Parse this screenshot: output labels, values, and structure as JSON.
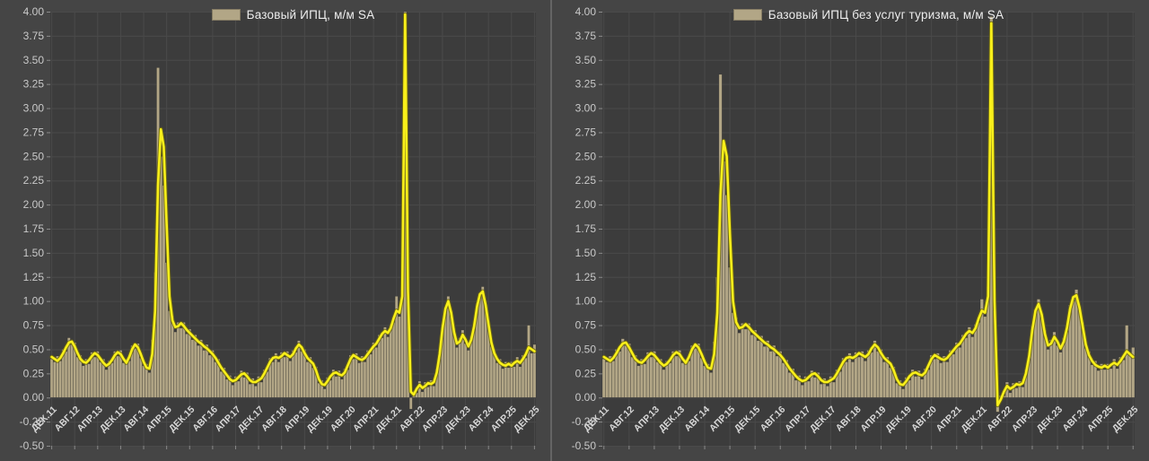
{
  "colors": {
    "page_bg": "#454545",
    "plot_bg": "#3c3c3c",
    "grid": "#4a4a4a",
    "tick": "#8a8a8a",
    "bar": "#b2a686",
    "bar_edge": "#232323",
    "line": "#f8ef1a",
    "line_shadow": "#6f680f",
    "axis_text": "#c9c9c9",
    "x_axis_text": "#d8d8d8",
    "legend_text": "#ededed",
    "divider": "#7d7d7d"
  },
  "chart_data": [
    {
      "type": "bar",
      "title": "Базовый ИПЦ, м/м SA",
      "subtitle": "",
      "xlabel": "",
      "ylabel": "",
      "x_period": "monthly, Dec 2011 – Dec 2025",
      "legend_position": "top-center",
      "grid": true,
      "ylim": [
        -0.5,
        4.0
      ],
      "y_tick_labels": [
        "4.00",
        "3.75",
        "3.50",
        "3.25",
        "3.00",
        "2.75",
        "2.50",
        "2.25",
        "2.00",
        "1.75",
        "1.50",
        "1.25",
        "1.00",
        "0.75",
        "0.50",
        "0.25",
        "0.00",
        "-0.25",
        "-0.50"
      ],
      "x_tick_labels": [
        "ДЕК.11",
        "АВГ.12",
        "АПР.13",
        "ДЕК.13",
        "АВГ.14",
        "АПР.15",
        "ДЕК.15",
        "АВГ.16",
        "АПР.17",
        "ДЕК.17",
        "АВГ.18",
        "АПР.19",
        "ДЕК.19",
        "АВГ.20",
        "АПР.21",
        "ДЕК.21",
        "АВГ.22",
        "АПР.23",
        "ДЕК.23",
        "АВГ.24",
        "АПР.25",
        "ДЕК.25"
      ],
      "x_tick_step_months": 8,
      "series": [
        {
          "name": "Базовый ИПЦ, м/м SA",
          "role": "bars",
          "color": "#b2a686",
          "values": [
            0.4,
            0.37,
            0.43,
            0.38,
            0.5,
            0.48,
            0.62,
            0.55,
            0.57,
            0.42,
            0.44,
            0.33,
            0.4,
            0.35,
            0.47,
            0.42,
            0.48,
            0.37,
            0.4,
            0.29,
            0.38,
            0.36,
            0.48,
            0.43,
            0.49,
            0.36,
            0.4,
            0.38,
            0.54,
            0.51,
            0.56,
            0.41,
            0.33,
            0.35,
            0.26,
            0.6,
            1.3,
            3.42,
            2.5,
            2.2,
            1.4,
            0.9,
            0.85,
            0.68,
            0.78,
            0.72,
            0.78,
            0.66,
            0.71,
            0.6,
            0.65,
            0.54,
            0.6,
            0.49,
            0.55,
            0.44,
            0.49,
            0.37,
            0.4,
            0.27,
            0.31,
            0.19,
            0.23,
            0.13,
            0.22,
            0.17,
            0.28,
            0.21,
            0.26,
            0.14,
            0.2,
            0.12,
            0.22,
            0.16,
            0.29,
            0.27,
            0.41,
            0.37,
            0.46,
            0.37,
            0.47,
            0.42,
            0.48,
            0.38,
            0.49,
            0.47,
            0.59,
            0.48,
            0.5,
            0.37,
            0.42,
            0.31,
            0.32,
            0.15,
            0.18,
            0.09,
            0.21,
            0.18,
            0.29,
            0.22,
            0.28,
            0.19,
            0.3,
            0.29,
            0.44,
            0.4,
            0.46,
            0.36,
            0.43,
            0.37,
            0.49,
            0.45,
            0.57,
            0.52,
            0.65,
            0.62,
            0.73,
            0.63,
            0.76,
            0.78,
            1.05,
            0.84,
            1.15,
            4.0,
            1.0,
            -0.12,
            0.07,
            0.05,
            0.17,
            0.06,
            0.16,
            0.11,
            0.18,
            0.12,
            0.3,
            0.41,
            0.76,
            0.88,
            1.05,
            0.84,
            0.72,
            0.52,
            0.62,
            0.7,
            0.56,
            0.49,
            0.64,
            0.7,
            0.98,
            1.03,
            1.15,
            0.92,
            0.8,
            0.53,
            0.5,
            0.36,
            0.4,
            0.3,
            0.37,
            0.31,
            0.37,
            0.32,
            0.42,
            0.32,
            0.44,
            0.41,
            0.75,
            0.46,
            0.55
          ]
        },
        {
          "name": "",
          "role": "line",
          "color": "#f8ef1a",
          "values": [
            0.42,
            0.4,
            0.38,
            0.41,
            0.46,
            0.52,
            0.57,
            0.58,
            0.53,
            0.46,
            0.4,
            0.37,
            0.36,
            0.39,
            0.43,
            0.46,
            0.44,
            0.4,
            0.36,
            0.33,
            0.35,
            0.39,
            0.44,
            0.47,
            0.45,
            0.4,
            0.36,
            0.42,
            0.5,
            0.55,
            0.52,
            0.45,
            0.37,
            0.31,
            0.3,
            0.45,
            0.9,
            2.2,
            2.78,
            2.6,
            1.8,
            1.05,
            0.8,
            0.73,
            0.74,
            0.77,
            0.74,
            0.7,
            0.67,
            0.64,
            0.61,
            0.58,
            0.56,
            0.53,
            0.51,
            0.48,
            0.45,
            0.41,
            0.36,
            0.31,
            0.27,
            0.23,
            0.19,
            0.17,
            0.18,
            0.21,
            0.24,
            0.25,
            0.22,
            0.18,
            0.16,
            0.16,
            0.18,
            0.2,
            0.25,
            0.31,
            0.37,
            0.41,
            0.42,
            0.41,
            0.43,
            0.46,
            0.44,
            0.42,
            0.45,
            0.51,
            0.55,
            0.52,
            0.46,
            0.41,
            0.38,
            0.35,
            0.28,
            0.19,
            0.14,
            0.13,
            0.17,
            0.22,
            0.25,
            0.26,
            0.24,
            0.23,
            0.26,
            0.33,
            0.4,
            0.44,
            0.42,
            0.4,
            0.39,
            0.41,
            0.45,
            0.49,
            0.53,
            0.56,
            0.61,
            0.66,
            0.69,
            0.67,
            0.72,
            0.82,
            0.9,
            0.88,
            1.05,
            3.97,
            1.1,
            0.06,
            0.03,
            0.09,
            0.13,
            0.1,
            0.12,
            0.15,
            0.14,
            0.16,
            0.26,
            0.45,
            0.72,
            0.92,
            1.0,
            0.88,
            0.68,
            0.56,
            0.58,
            0.65,
            0.6,
            0.53,
            0.6,
            0.74,
            0.94,
            1.07,
            1.1,
            0.96,
            0.76,
            0.57,
            0.46,
            0.4,
            0.36,
            0.34,
            0.33,
            0.35,
            0.33,
            0.36,
            0.38,
            0.36,
            0.4,
            0.45,
            0.52,
            0.5,
            0.48
          ]
        }
      ]
    },
    {
      "type": "bar",
      "title": "Базовый ИПЦ без услуг туризма, м/м SA",
      "subtitle": "",
      "xlabel": "",
      "ylabel": "",
      "x_period": "monthly, Dec 2011 – Dec 2025",
      "legend_position": "top-center",
      "grid": true,
      "ylim": [
        -0.5,
        4.0
      ],
      "y_tick_labels": [
        "4.00",
        "3.75",
        "3.50",
        "3.25",
        "3.00",
        "2.75",
        "2.50",
        "2.25",
        "2.00",
        "1.75",
        "1.50",
        "1.25",
        "1.00",
        "0.75",
        "0.50",
        "0.25",
        "0.00",
        "-0.25",
        "-0.50"
      ],
      "x_tick_labels": [
        "ДЕК.11",
        "АВГ.12",
        "АПР.13",
        "ДЕК.13",
        "АВГ.14",
        "АПР.15",
        "ДЕК.15",
        "АВГ.16",
        "АПР.17",
        "ДЕК.17",
        "АВГ.18",
        "АПР.19",
        "ДЕК.19",
        "АВГ.20",
        "АПР.21",
        "ДЕК.21",
        "АВГ.22",
        "АПР.23",
        "ДЕК.23",
        "АВГ.24",
        "АПР.25",
        "ДЕК.25"
      ],
      "x_tick_step_months": 8,
      "series": [
        {
          "name": "Базовый ИПЦ без услуг туризма, м/м SA",
          "role": "bars",
          "color": "#b2a686",
          "values": [
            0.4,
            0.37,
            0.43,
            0.38,
            0.5,
            0.48,
            0.61,
            0.54,
            0.56,
            0.42,
            0.44,
            0.33,
            0.4,
            0.35,
            0.47,
            0.42,
            0.48,
            0.37,
            0.4,
            0.29,
            0.38,
            0.36,
            0.48,
            0.43,
            0.49,
            0.36,
            0.4,
            0.38,
            0.54,
            0.51,
            0.56,
            0.41,
            0.33,
            0.35,
            0.26,
            0.58,
            1.25,
            3.35,
            2.45,
            2.1,
            1.35,
            0.88,
            0.83,
            0.67,
            0.77,
            0.71,
            0.77,
            0.65,
            0.7,
            0.59,
            0.64,
            0.53,
            0.59,
            0.48,
            0.54,
            0.43,
            0.48,
            0.36,
            0.39,
            0.26,
            0.3,
            0.18,
            0.23,
            0.13,
            0.22,
            0.17,
            0.28,
            0.21,
            0.26,
            0.14,
            0.2,
            0.12,
            0.22,
            0.16,
            0.29,
            0.27,
            0.41,
            0.37,
            0.46,
            0.37,
            0.47,
            0.42,
            0.48,
            0.38,
            0.49,
            0.47,
            0.59,
            0.48,
            0.5,
            0.37,
            0.42,
            0.31,
            0.32,
            0.15,
            0.18,
            0.09,
            0.21,
            0.18,
            0.29,
            0.22,
            0.28,
            0.19,
            0.3,
            0.29,
            0.44,
            0.4,
            0.46,
            0.36,
            0.43,
            0.37,
            0.49,
            0.45,
            0.57,
            0.52,
            0.65,
            0.62,
            0.73,
            0.63,
            0.76,
            0.78,
            1.02,
            0.84,
            1.15,
            3.95,
            0.9,
            -0.15,
            0.02,
            0.02,
            0.16,
            0.05,
            0.15,
            0.1,
            0.17,
            0.11,
            0.29,
            0.39,
            0.74,
            0.86,
            1.02,
            0.82,
            0.7,
            0.5,
            0.6,
            0.68,
            0.54,
            0.47,
            0.62,
            0.68,
            0.96,
            1.0,
            1.12,
            0.9,
            0.78,
            0.51,
            0.48,
            0.34,
            0.38,
            0.28,
            0.35,
            0.29,
            0.35,
            0.3,
            0.4,
            0.3,
            0.42,
            0.39,
            0.75,
            0.44,
            0.52
          ]
        },
        {
          "name": "",
          "role": "line",
          "color": "#f8ef1a",
          "values": [
            0.42,
            0.4,
            0.38,
            0.41,
            0.46,
            0.52,
            0.56,
            0.57,
            0.52,
            0.46,
            0.4,
            0.37,
            0.36,
            0.39,
            0.43,
            0.46,
            0.44,
            0.4,
            0.36,
            0.33,
            0.35,
            0.39,
            0.44,
            0.47,
            0.45,
            0.4,
            0.36,
            0.42,
            0.5,
            0.55,
            0.52,
            0.45,
            0.37,
            0.31,
            0.3,
            0.45,
            0.88,
            2.1,
            2.66,
            2.5,
            1.7,
            1.0,
            0.78,
            0.72,
            0.73,
            0.76,
            0.73,
            0.69,
            0.66,
            0.63,
            0.6,
            0.57,
            0.55,
            0.52,
            0.5,
            0.47,
            0.44,
            0.4,
            0.35,
            0.3,
            0.26,
            0.22,
            0.19,
            0.17,
            0.18,
            0.21,
            0.24,
            0.25,
            0.22,
            0.18,
            0.16,
            0.16,
            0.18,
            0.2,
            0.25,
            0.31,
            0.37,
            0.41,
            0.42,
            0.41,
            0.43,
            0.46,
            0.44,
            0.42,
            0.45,
            0.51,
            0.55,
            0.52,
            0.46,
            0.41,
            0.38,
            0.35,
            0.28,
            0.19,
            0.14,
            0.13,
            0.17,
            0.22,
            0.25,
            0.26,
            0.24,
            0.23,
            0.26,
            0.33,
            0.4,
            0.44,
            0.42,
            0.4,
            0.39,
            0.41,
            0.45,
            0.49,
            0.53,
            0.56,
            0.61,
            0.66,
            0.69,
            0.67,
            0.72,
            0.82,
            0.9,
            0.88,
            1.05,
            3.88,
            1.0,
            -0.08,
            -0.02,
            0.06,
            0.12,
            0.09,
            0.11,
            0.14,
            0.13,
            0.15,
            0.25,
            0.43,
            0.7,
            0.9,
            0.97,
            0.86,
            0.66,
            0.54,
            0.56,
            0.63,
            0.58,
            0.51,
            0.58,
            0.72,
            0.92,
            1.04,
            1.06,
            0.93,
            0.74,
            0.55,
            0.44,
            0.38,
            0.34,
            0.32,
            0.31,
            0.33,
            0.31,
            0.34,
            0.36,
            0.34,
            0.38,
            0.43,
            0.48,
            0.45,
            0.42
          ]
        }
      ]
    }
  ]
}
